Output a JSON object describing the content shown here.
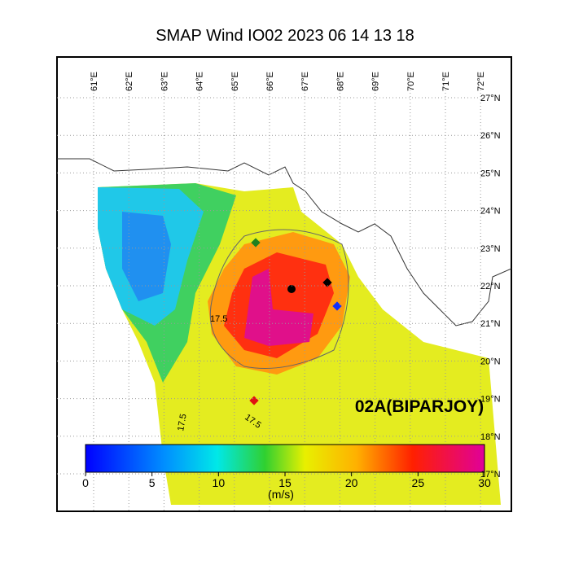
{
  "title": "SMAP Wind  IO02  2023 06 14 13 18",
  "map": {
    "lon_labels": [
      "61°E",
      "62°E",
      "63°E",
      "64°E",
      "65°E",
      "66°E",
      "67°E",
      "68°E",
      "69°E",
      "70°E",
      "71°E",
      "72°E"
    ],
    "lat_labels": [
      "27°N",
      "26°N",
      "25°N",
      "24°N",
      "23°N",
      "22°N",
      "21°N",
      "20°N",
      "19°N",
      "18°N",
      "17°N"
    ],
    "storm_label": "02A(BIPARJOY)",
    "contour_labels": [
      "17.5",
      "17.5",
      "17.5"
    ]
  },
  "colorbar": {
    "ticks": [
      0,
      5,
      10,
      15,
      20,
      25,
      30
    ],
    "unit": "(m/s)"
  }
}
